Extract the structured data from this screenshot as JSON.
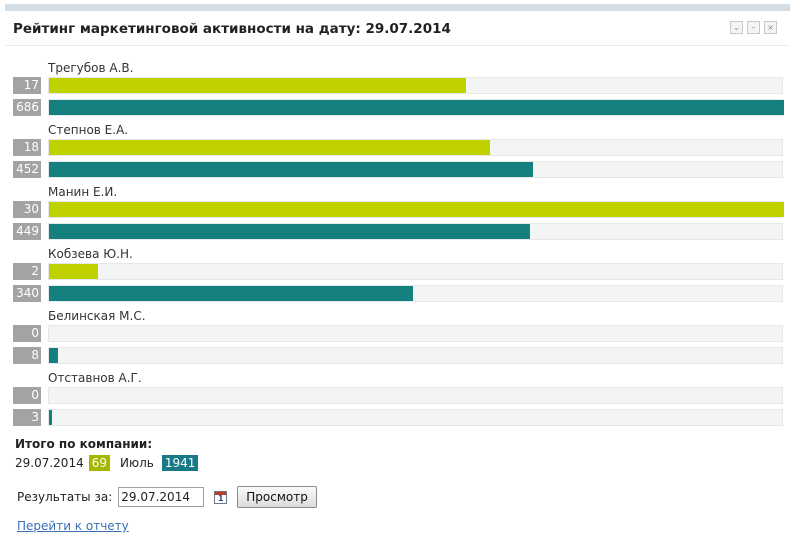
{
  "header": {
    "title": "Рейтинг маркетинговой активности на дату: 29.07.2014"
  },
  "window_controls": [
    {
      "name": "collapse-icon",
      "glyph": "⌄"
    },
    {
      "name": "minimize-icon",
      "glyph": "–"
    },
    {
      "name": "close-icon",
      "glyph": "×"
    }
  ],
  "scale": {
    "current_max": 30,
    "month_max": 686
  },
  "colors": {
    "current": "#bfd200",
    "month": "#168080"
  },
  "employees": [
    {
      "name": "Трегубов А.В.",
      "current": 17,
      "current_label": "17",
      "month": 686,
      "month_label": "686"
    },
    {
      "name": "Степнов Е.А.",
      "current": 18,
      "current_label": "18",
      "month": 452,
      "month_label": "452"
    },
    {
      "name": "Манин Е.И.",
      "current": 30,
      "current_label": "30",
      "month": 449,
      "month_label": "449"
    },
    {
      "name": "Кобзева Ю.Н.",
      "current": 2,
      "current_label": "2",
      "month": 340,
      "month_label": "340"
    },
    {
      "name": "Белинская М.С.",
      "current": 0,
      "current_label": "0",
      "month": 8,
      "month_label": "8"
    },
    {
      "name": "Отставнов А.Г.",
      "current": 0,
      "current_label": "0",
      "month": 3,
      "month_label": "3"
    }
  ],
  "totals": {
    "label": "Итого по компании:",
    "date": "29.07.2014",
    "current_value": "69",
    "month_label": "Июль",
    "month_value": "1941"
  },
  "filter": {
    "label": "Результаты за:",
    "date_value": "29.07.2014",
    "calendar_glyph": "1",
    "button_label": "Просмотр"
  },
  "link": {
    "label": "Перейти к отчету"
  }
}
